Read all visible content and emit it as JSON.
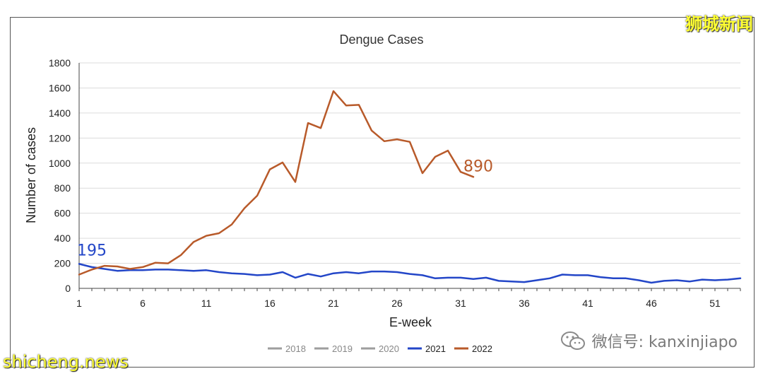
{
  "watermarks": {
    "top_right": "狮城新闻",
    "bottom_left": "shicheng.news",
    "wechat_label": "微信号: kanxinjiapo",
    "wechat_icon": "wechat-icon"
  },
  "chart_data": {
    "type": "line",
    "title": "Dengue Cases",
    "xlabel": "E-week",
    "ylabel": "Number of cases",
    "xlim": [
      1,
      53
    ],
    "ylim": [
      0,
      1800
    ],
    "xticks": [
      1,
      6,
      11,
      16,
      21,
      26,
      31,
      36,
      41,
      46,
      51
    ],
    "yticks": [
      0,
      200,
      400,
      600,
      800,
      1000,
      1200,
      1400,
      1600,
      1800
    ],
    "grid": true,
    "legend_position": "bottom",
    "series": [
      {
        "name": "2018",
        "color": "#9e9e9e",
        "values": []
      },
      {
        "name": "2019",
        "color": "#9e9e9e",
        "values": []
      },
      {
        "name": "2020",
        "color": "#9e9e9e",
        "values": []
      },
      {
        "name": "2021",
        "color": "#2346c8",
        "x_start": 1,
        "values": [
          195,
          170,
          155,
          140,
          145,
          145,
          150,
          150,
          145,
          140,
          145,
          130,
          120,
          115,
          105,
          110,
          130,
          85,
          115,
          95,
          120,
          130,
          120,
          135,
          135,
          130,
          115,
          105,
          80,
          85,
          85,
          75,
          85,
          60,
          55,
          50,
          65,
          80,
          110,
          105,
          105,
          90,
          80,
          80,
          65,
          45,
          60,
          65,
          55,
          70,
          65,
          70,
          80
        ]
      },
      {
        "name": "2022",
        "color": "#b85a2a",
        "x_start": 1,
        "values": [
          110,
          150,
          180,
          175,
          155,
          170,
          205,
          200,
          265,
          370,
          420,
          440,
          510,
          640,
          740,
          950,
          1005,
          850,
          1320,
          1280,
          1575,
          1460,
          1465,
          1260,
          1175,
          1190,
          1170,
          920,
          1050,
          1100,
          930,
          890
        ]
      }
    ],
    "annotations": [
      {
        "text": "195",
        "series": "2021",
        "color": "#2346c8"
      },
      {
        "text": "890",
        "series": "2022",
        "color": "#b85a2a"
      }
    ]
  }
}
